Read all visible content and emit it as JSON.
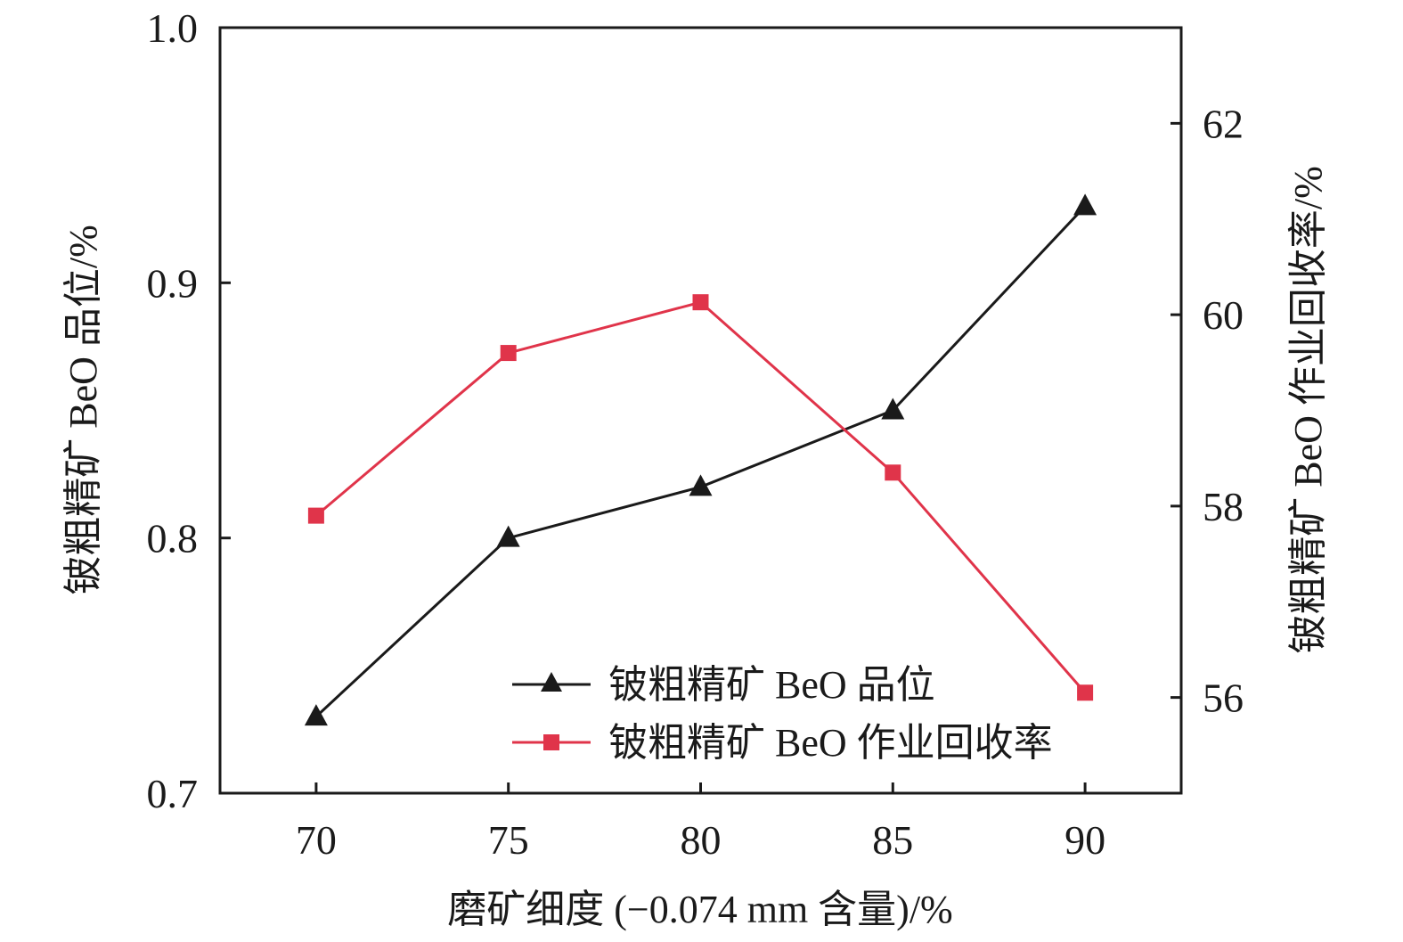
{
  "chart_data": {
    "type": "line",
    "x": [
      70,
      75,
      80,
      85,
      90
    ],
    "xlabel": "磨矿细度 (−0.074 mm 含量)/%",
    "xlim": [
      67.5,
      92.5
    ],
    "x_ticks": [
      "70",
      "75",
      "80",
      "85",
      "90"
    ],
    "y_left": {
      "label": "铍粗精矿 BeO 品位/%",
      "lim": [
        0.7,
        1.0
      ],
      "ticks": [
        "0.7",
        "0.8",
        "0.9",
        "1.0"
      ]
    },
    "y_right": {
      "label": "铍粗精矿 BeO 作业回收率/%",
      "lim": [
        55.0,
        63.0
      ],
      "ticks": [
        "56",
        "58",
        "60",
        "62"
      ]
    },
    "series": [
      {
        "name": "铍粗精矿 BeO 品位",
        "axis": "left",
        "marker": "triangle",
        "color": "#1a1a1a",
        "values": [
          0.73,
          0.8,
          0.82,
          0.85,
          0.93
        ]
      },
      {
        "name": "铍粗精矿 BeO 作业回收率",
        "axis": "right",
        "marker": "square",
        "color": "#e0344a",
        "values": [
          57.9,
          59.6,
          60.13,
          58.35,
          56.05
        ]
      }
    ],
    "legend_position": "bottom-right",
    "grid": false
  }
}
